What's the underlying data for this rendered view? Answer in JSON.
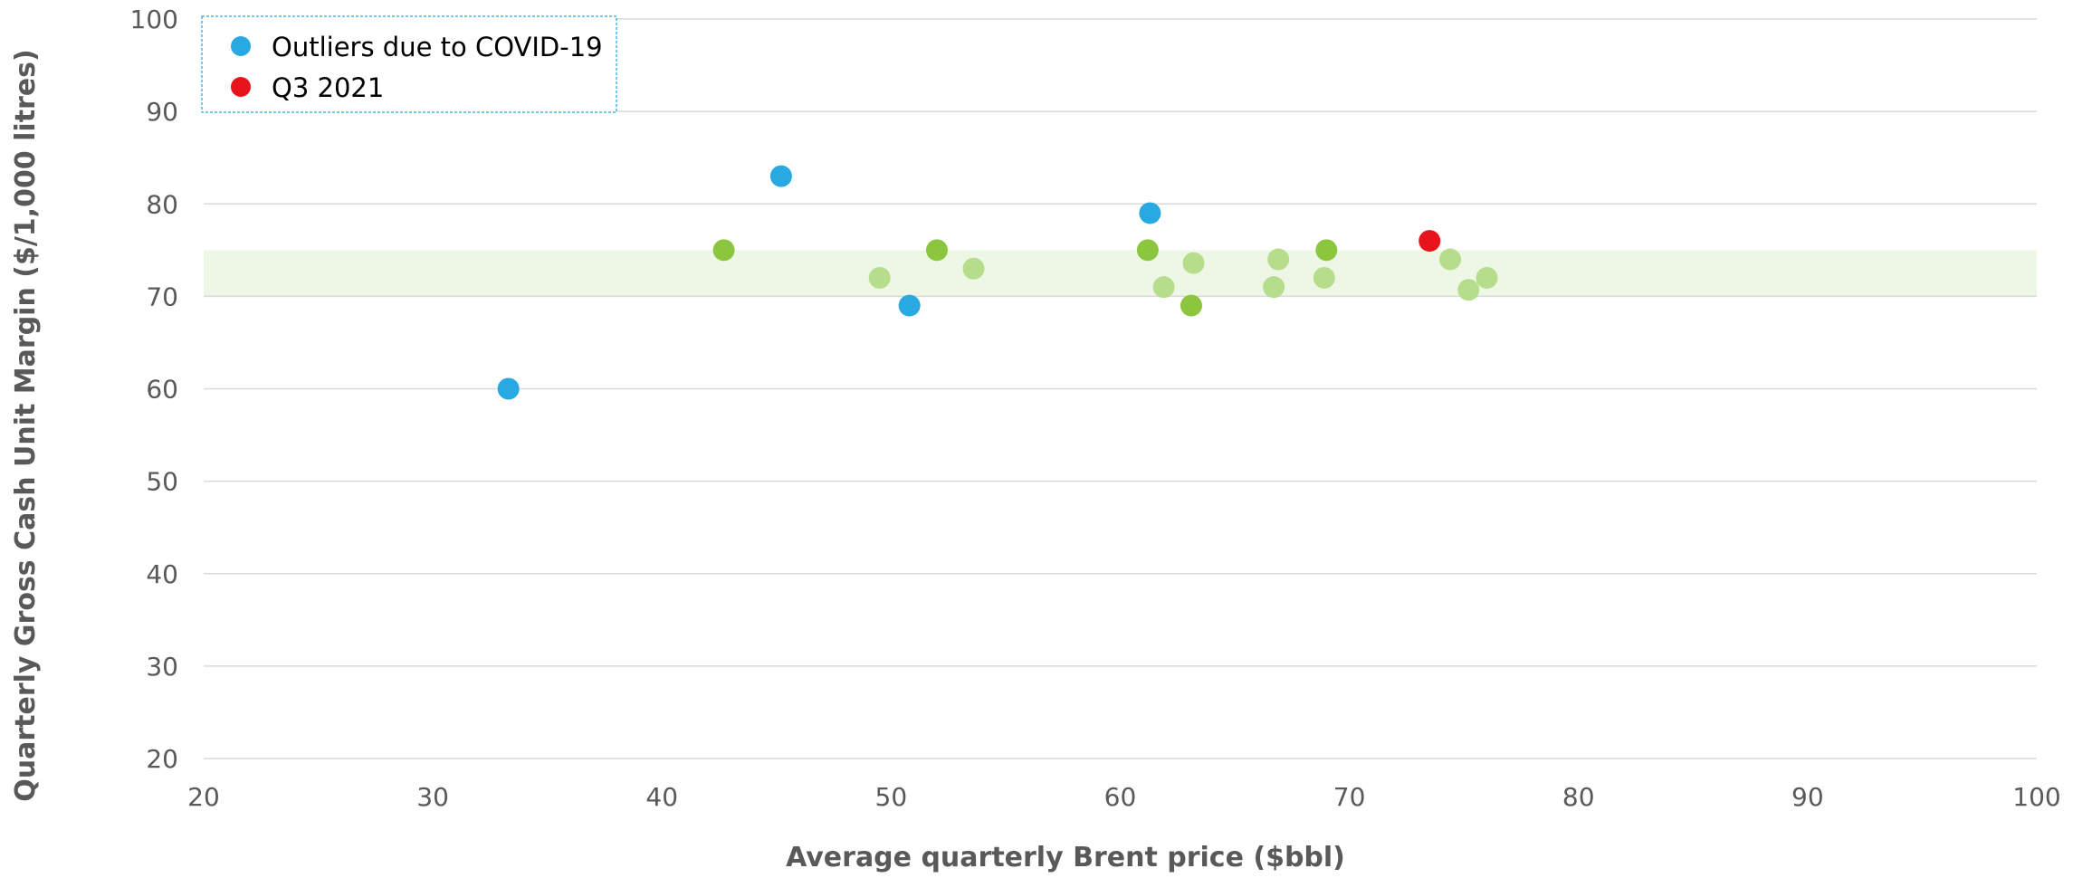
{
  "chart_data": {
    "type": "scatter",
    "xlabel": "Average quarterly Brent price ($bbl)",
    "ylabel": "Quarterly Gross Cash Unit Margin ($/1,000 litres)",
    "xlim": [
      20,
      100
    ],
    "ylim": [
      20,
      100
    ],
    "x_ticks": [
      "20",
      "30",
      "40",
      "50",
      "60",
      "70",
      "80",
      "90",
      "100"
    ],
    "y_ticks": [
      "20",
      "30",
      "40",
      "50",
      "60",
      "70",
      "80",
      "90",
      "100"
    ],
    "grid": "horizontal",
    "shaded_band": {
      "y_from": 70,
      "y_to": 75,
      "color": "#EEF7E6"
    },
    "legend": {
      "placement": "top-left",
      "entries": [
        {
          "label": "Outliers due to COVID-19",
          "color": "#29A9E1"
        },
        {
          "label": "Q3 2021",
          "color": "#E8141C"
        }
      ]
    },
    "series": [
      {
        "name": "Outliers due to COVID-19",
        "color": "#29A9E1",
        "points": [
          {
            "x": 33.3,
            "y": 60
          },
          {
            "x": 45.2,
            "y": 83
          },
          {
            "x": 50.8,
            "y": 69
          },
          {
            "x": 61.3,
            "y": 79
          }
        ]
      },
      {
        "name": "Q3 2021",
        "color": "#E8141C",
        "points": [
          {
            "x": 73.5,
            "y": 76
          }
        ]
      },
      {
        "color": "#8CC63F",
        "points": [
          {
            "x": 42.7,
            "y": 75
          },
          {
            "x": 52.0,
            "y": 75
          },
          {
            "x": 61.2,
            "y": 75
          },
          {
            "x": 63.1,
            "y": 69
          },
          {
            "x": 69.0,
            "y": 75
          }
        ]
      },
      {
        "color": "#B5DD8B",
        "points": [
          {
            "x": 49.5,
            "y": 72
          },
          {
            "x": 53.6,
            "y": 73
          },
          {
            "x": 61.9,
            "y": 71
          },
          {
            "x": 63.2,
            "y": 73.6
          },
          {
            "x": 66.7,
            "y": 71
          },
          {
            "x": 66.9,
            "y": 74
          },
          {
            "x": 68.9,
            "y": 72
          },
          {
            "x": 74.4,
            "y": 74
          },
          {
            "x": 75.2,
            "y": 70.7
          },
          {
            "x": 76.0,
            "y": 72
          }
        ]
      }
    ]
  }
}
